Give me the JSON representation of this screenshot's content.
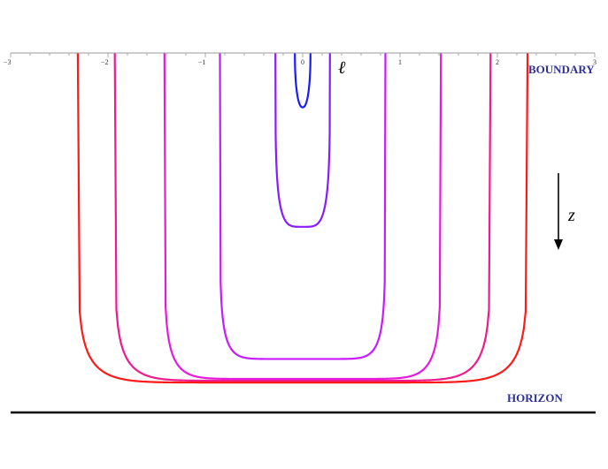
{
  "chart_data": {
    "type": "line",
    "axis": {
      "xlim": [
        -3,
        3
      ],
      "major_ticks": [
        -3,
        -2,
        -1,
        0,
        1,
        2,
        3
      ],
      "tick_labels": [
        "−3",
        "−2",
        "−1",
        "0",
        "1",
        "2",
        "3"
      ],
      "minor_step": 0.2
    },
    "labels": {
      "ell": "ℓ",
      "boundary": "BOUNDARY",
      "horizon": "HORIZON",
      "z": "z"
    },
    "series": [
      {
        "half_width": 0.08,
        "depth": 0.15,
        "color": "#1a1aff"
      },
      {
        "half_width": 0.28,
        "depth": 0.48,
        "color": "#8a1aff"
      },
      {
        "half_width": 0.85,
        "depth": 0.845,
        "color": "#c81aff"
      },
      {
        "half_width": 1.42,
        "depth": 0.9,
        "color": "#e61adc"
      },
      {
        "half_width": 1.93,
        "depth": 0.905,
        "color": "#f01a8c"
      },
      {
        "half_width": 2.31,
        "depth": 0.91,
        "color": "#ff1a1a"
      }
    ],
    "colors": {
      "axis": "#999999",
      "horizon_line": "#000000",
      "label_color": "#2e3192"
    }
  }
}
